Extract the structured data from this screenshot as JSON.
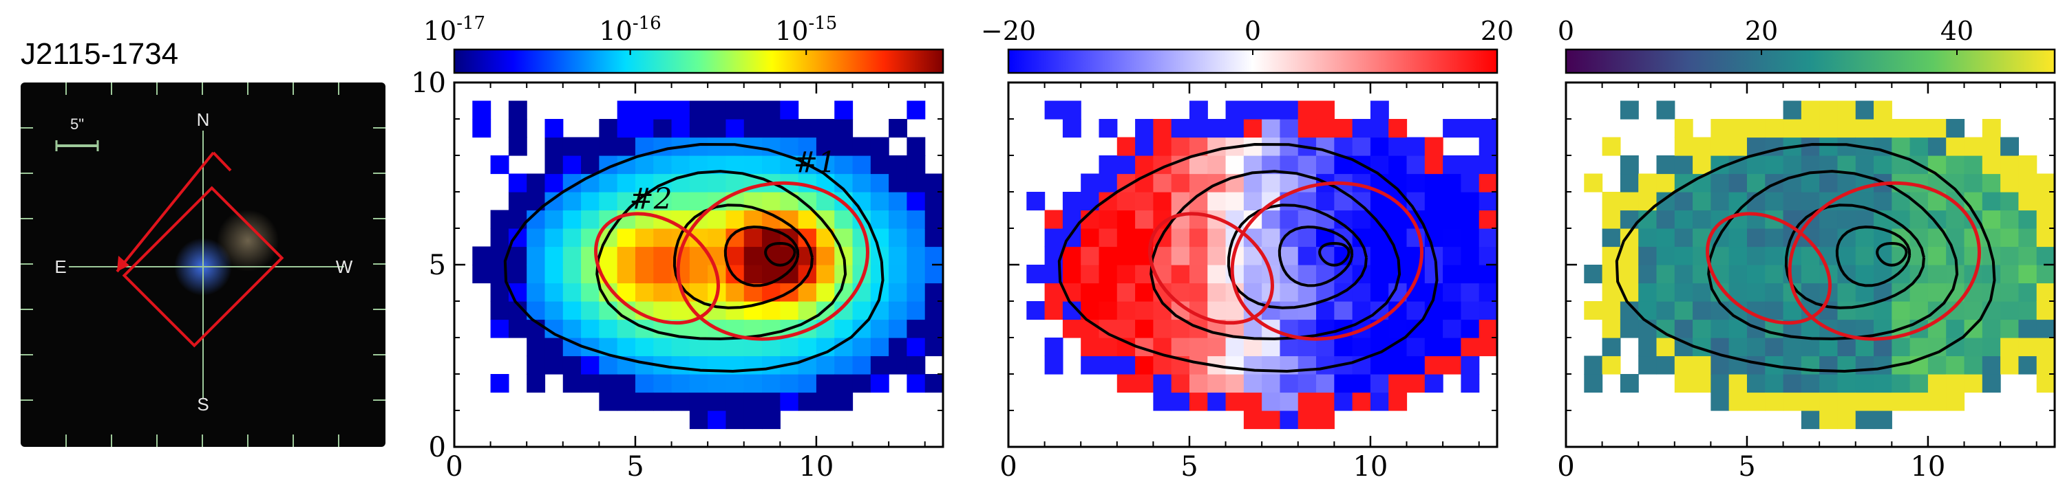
{
  "figure_title": "J2115-1734",
  "thumbnail": {
    "background": "#060606",
    "scale_label": "5\"",
    "compass": {
      "north": "N",
      "south": "S",
      "east": "E",
      "west": "W"
    },
    "accent": "#e0141c",
    "grid_color": "#9ec99a",
    "source_color": "#3f6fe6"
  },
  "chart_data": [
    {
      "type": "heatmap",
      "colormap": "jet",
      "colorbar": {
        "ticks": [
          "10^{-17}",
          "10^{-16}",
          "10^{-15}"
        ],
        "scale": "log"
      },
      "xlim": [
        0,
        13.5
      ],
      "ylim": [
        0,
        10
      ],
      "xticks": [
        0,
        5,
        10
      ],
      "yticks": [
        0,
        5,
        10
      ],
      "apertures": [
        {
          "label": "#1",
          "center": [
            8.8,
            5.1
          ],
          "axes": [
            5.3,
            4.2
          ],
          "angle_deg": 15
        },
        {
          "label": "#2",
          "center": [
            5.6,
            4.9
          ],
          "axes": [
            3.7,
            2.6
          ],
          "angle_deg": -35
        }
      ],
      "contours": {
        "center": [
          9.0,
          5.3
        ],
        "levels": 5
      }
    },
    {
      "type": "heatmap",
      "colormap": "bwr",
      "colorbar": {
        "ticks": [
          "−20",
          "0",
          "20"
        ],
        "range": [
          -20,
          20
        ]
      },
      "xlim": [
        0,
        13.5
      ],
      "ylim": [
        0,
        10
      ],
      "xticks": [
        0,
        5,
        10
      ],
      "yticks": [
        0,
        5,
        10
      ]
    },
    {
      "type": "heatmap",
      "colormap": "viridis",
      "colorbar": {
        "ticks": [
          "0",
          "20",
          "40"
        ],
        "range": [
          0,
          50
        ]
      },
      "xlim": [
        0,
        13.5
      ],
      "ylim": [
        0,
        10
      ],
      "xticks": [
        0,
        5,
        10
      ],
      "yticks": [
        0,
        5,
        10
      ]
    }
  ]
}
